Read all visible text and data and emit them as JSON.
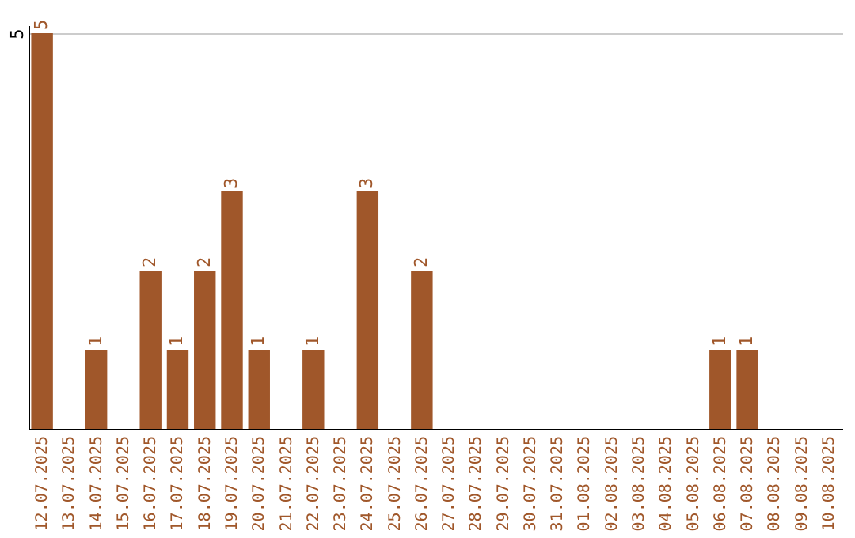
{
  "chart_data": {
    "type": "bar",
    "categories": [
      "12.07.2025",
      "13.07.2025",
      "14.07.2025",
      "15.07.2025",
      "16.07.2025",
      "17.07.2025",
      "18.07.2025",
      "19.07.2025",
      "20.07.2025",
      "21.07.2025",
      "22.07.2025",
      "23.07.2025",
      "24.07.2025",
      "25.07.2025",
      "26.07.2025",
      "27.07.2025",
      "28.07.2025",
      "29.07.2025",
      "30.07.2025",
      "31.07.2025",
      "01.08.2025",
      "02.08.2025",
      "03.08.2025",
      "04.08.2025",
      "05.08.2025",
      "06.08.2025",
      "07.08.2025",
      "08.08.2025",
      "09.08.2025",
      "10.08.2025"
    ],
    "values": [
      5,
      0,
      1,
      0,
      2,
      1,
      2,
      3,
      1,
      0,
      1,
      0,
      3,
      0,
      2,
      0,
      0,
      0,
      0,
      0,
      0,
      0,
      0,
      0,
      0,
      1,
      1,
      0,
      0,
      0
    ],
    "value_labels": [
      "5",
      null,
      "1",
      null,
      "2",
      "1",
      "2",
      "3",
      "1",
      null,
      "1",
      null,
      "3",
      null,
      "2",
      null,
      null,
      null,
      null,
      null,
      null,
      null,
      null,
      null,
      null,
      "1",
      "1",
      null,
      null,
      null
    ],
    "color": "#a0572a",
    "ylim": [
      0,
      5.1
    ],
    "yticks": [
      5
    ],
    "grid": "y"
  }
}
